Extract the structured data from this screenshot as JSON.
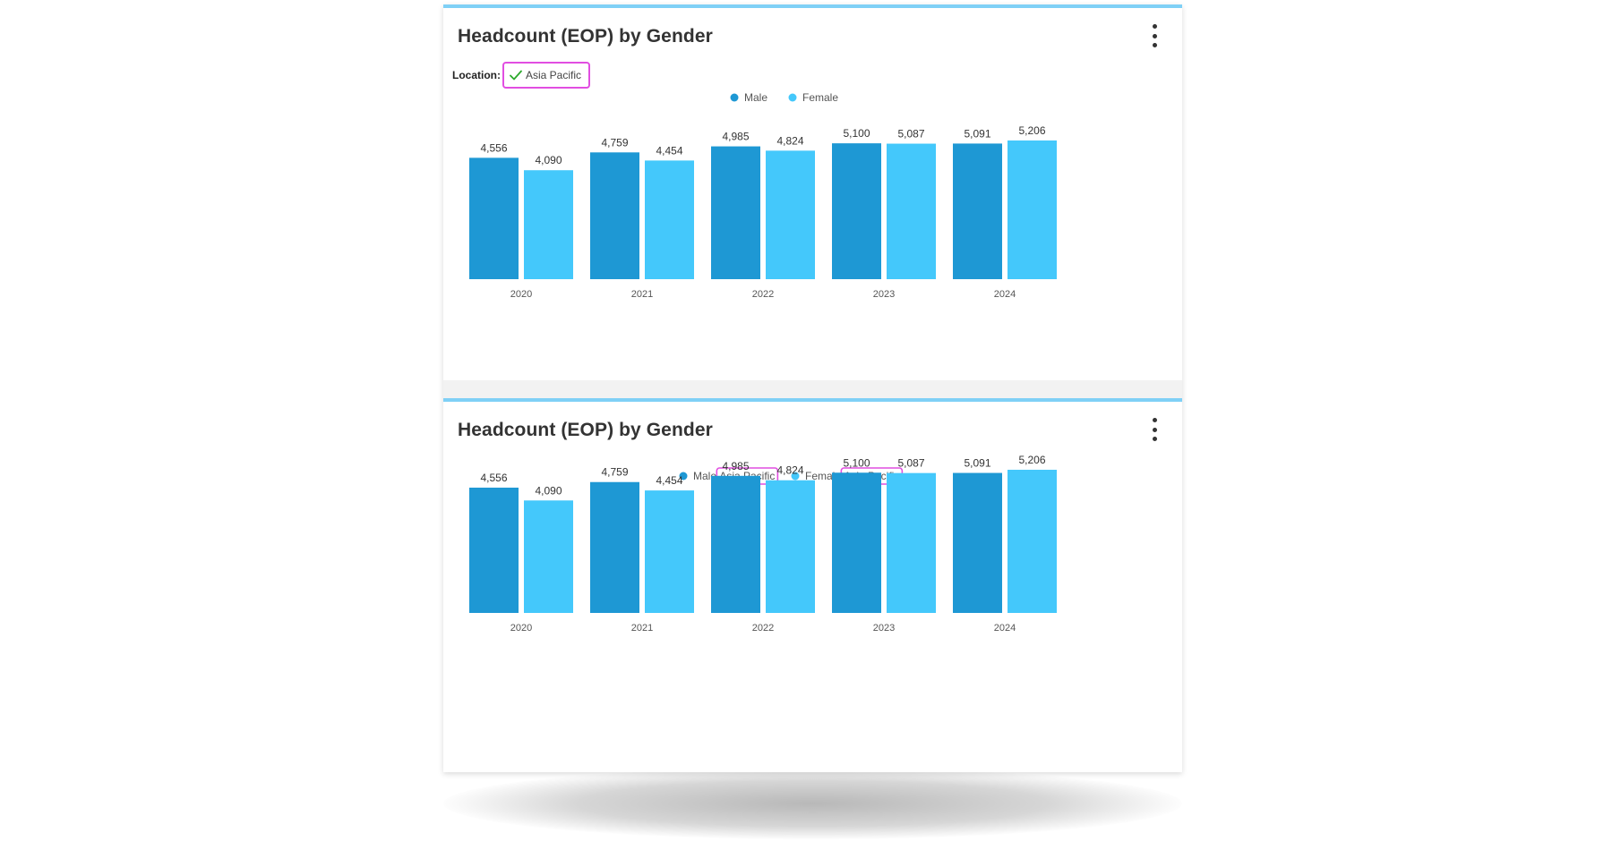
{
  "colors": {
    "male": "#1e98d4",
    "female": "#44c8fb",
    "accent_border": "#7fd0f6",
    "highlight": "#e14ee1",
    "check": "#2eaa2e"
  },
  "panels": [
    {
      "title": "Headcount (EOP) by Gender",
      "menu_icon": "kebab-menu-icon",
      "filter": {
        "label": "Location:",
        "value": "Asia Pacific",
        "icon": "check-icon"
      },
      "legend": [
        {
          "name": "Male",
          "suffix": ""
        },
        {
          "name": "Female",
          "suffix": ""
        }
      ]
    },
    {
      "title": "Headcount (EOP) by Gender",
      "menu_icon": "kebab-menu-icon",
      "legend": [
        {
          "name": "Male",
          "suffix": "Asia Pacific"
        },
        {
          "name": "Female",
          "suffix": "Asia Pacific"
        }
      ]
    }
  ],
  "chart_data": [
    {
      "type": "bar",
      "title": "Headcount (EOP) by Gender",
      "categories": [
        "2020",
        "2021",
        "2022",
        "2023",
        "2024"
      ],
      "series": [
        {
          "name": "Male",
          "values": [
            4556,
            4759,
            4985,
            5100,
            5091
          ],
          "labels": [
            "4,556",
            "4,759",
            "4,985",
            "5,100",
            "5,091"
          ]
        },
        {
          "name": "Female",
          "values": [
            4090,
            4454,
            4824,
            5087,
            5206
          ],
          "labels": [
            "4,090",
            "4,454",
            "4,824",
            "5,087",
            "5,206"
          ]
        }
      ],
      "ylim": [
        0,
        5206
      ],
      "legend_position": "top-center",
      "grid": false
    },
    {
      "type": "bar",
      "title": "Headcount (EOP) by Gender",
      "categories": [
        "2020",
        "2021",
        "2022",
        "2023",
        "2024"
      ],
      "series": [
        {
          "name": "Male Asia Pacific",
          "values": [
            4556,
            4759,
            4985,
            5100,
            5091
          ],
          "labels": [
            "4,556",
            "4,759",
            "4,985",
            "5,100",
            "5,091"
          ]
        },
        {
          "name": "Female Asia Pacific",
          "values": [
            4090,
            4454,
            4824,
            5087,
            5206
          ],
          "labels": [
            "4,090",
            "4,454",
            "4,824",
            "5,087",
            "5,206"
          ]
        }
      ],
      "ylim": [
        0,
        5206
      ],
      "legend_position": "top-center",
      "grid": false
    }
  ]
}
